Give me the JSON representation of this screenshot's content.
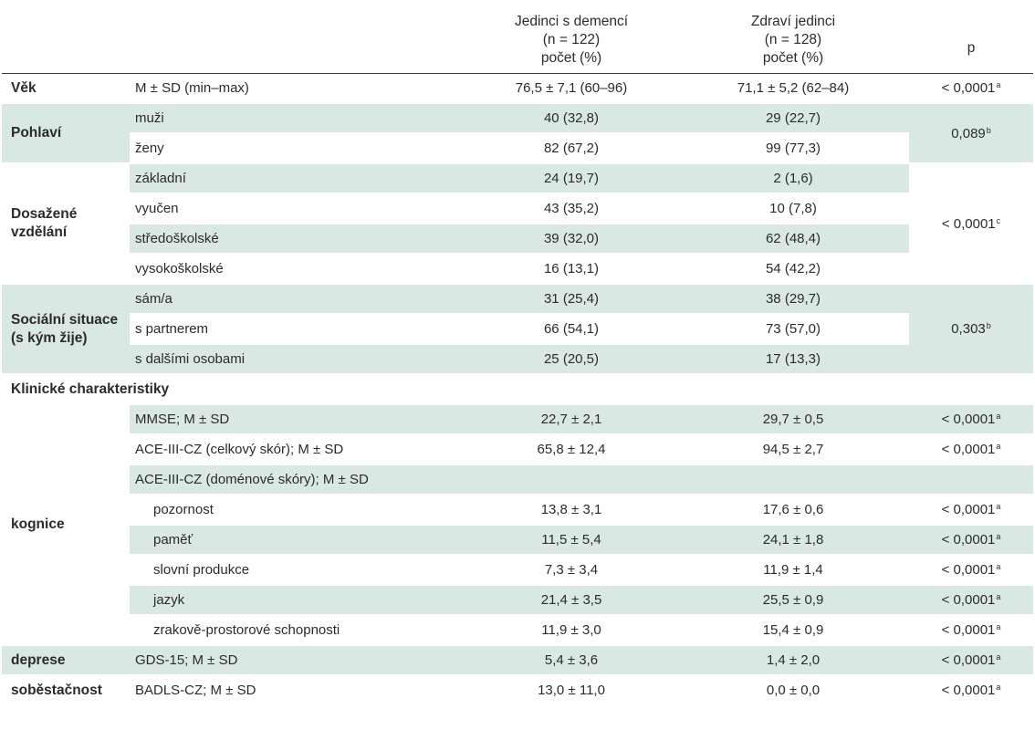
{
  "header": {
    "col_dementia": [
      "Jedinci s demencí",
      "(n = 122)",
      "počet (%)"
    ],
    "col_healthy": [
      "Zdraví jedinci",
      "(n = 128)",
      "počet (%)"
    ],
    "col_p": "p"
  },
  "age": {
    "category": "Věk",
    "label": "M ± SD (min–max)",
    "dementia": "76,5 ± 7,1 (60–96)",
    "healthy": "71,1 ± 5,2 (62–84)",
    "p": "< 0,0001",
    "sup": "a"
  },
  "sex": {
    "category": "Pohlaví",
    "p": "0,089",
    "sup": "b",
    "rows": [
      {
        "label": "muži",
        "dementia": "40 (32,8)",
        "healthy": "29 (22,7)"
      },
      {
        "label": "ženy",
        "dementia": "82 (67,2)",
        "healthy": "99 (77,3)"
      }
    ]
  },
  "education": {
    "category_line1": "Dosažené",
    "category_line2": "vzdělání",
    "p": "< 0,0001",
    "sup": "c",
    "rows": [
      {
        "label": "základní",
        "dementia": "24 (19,7)",
        "healthy": "2 (1,6)"
      },
      {
        "label": "vyučen",
        "dementia": "43 (35,2)",
        "healthy": "10 (7,8)"
      },
      {
        "label": "středoškolské",
        "dementia": "39 (32,0)",
        "healthy": "62 (48,4)"
      },
      {
        "label": "vysokoškolské",
        "dementia": "16 (13,1)",
        "healthy": "54 (42,2)"
      }
    ]
  },
  "social": {
    "category_line1": "Sociální situace",
    "category_line2": "(s kým žije)",
    "p": "0,303",
    "sup": "b",
    "rows": [
      {
        "label": "sám/a",
        "dementia": "31 (25,4)",
        "healthy": "38 (29,7)"
      },
      {
        "label": "s partnerem",
        "dementia": "66 (54,1)",
        "healthy": "73 (57,0)"
      },
      {
        "label": "s dalšími osobami",
        "dementia": "25 (20,5)",
        "healthy": "17 (13,3)"
      }
    ]
  },
  "clinical_heading": "Klinické charakteristiky",
  "cognition": {
    "category": "kognice",
    "rows": [
      {
        "label": "MMSE; M ± SD",
        "dementia": "22,7 ± 2,1",
        "healthy": "29,7 ± 0,5",
        "p": "< 0,0001",
        "sup": "a"
      },
      {
        "label": "ACE-III-CZ (celkový skór); M ± SD",
        "dementia": "65,8 ± 12,4",
        "healthy": "94,5 ± 2,7",
        "p": "< 0,0001",
        "sup": "a"
      },
      {
        "label": "ACE-III-CZ (doménové skóry); M ± SD",
        "dementia": "",
        "healthy": "",
        "p": "",
        "sup": ""
      },
      {
        "label": "pozornost",
        "dementia": "13,8 ± 3,1",
        "healthy": "17,6 ± 0,6",
        "p": "< 0,0001",
        "sup": "a"
      },
      {
        "label": "paměť",
        "dementia": "11,5 ± 5,4",
        "healthy": "24,1 ± 1,8",
        "p": "< 0,0001",
        "sup": "a"
      },
      {
        "label": "slovní produkce",
        "dementia": "7,3 ± 3,4",
        "healthy": "11,9 ± 1,4",
        "p": "< 0,0001",
        "sup": "a"
      },
      {
        "label": "jazyk",
        "dementia": "21,4 ± 3,5",
        "healthy": "25,5 ± 0,9",
        "p": "< 0,0001",
        "sup": "a"
      },
      {
        "label": "zrakově-prostorové schopnosti",
        "dementia": "11,9 ± 3,0",
        "healthy": "15,4 ± 0,9",
        "p": "< 0,0001",
        "sup": "a"
      }
    ]
  },
  "depression": {
    "category": "deprese",
    "label": "GDS-15; M ± SD",
    "dementia": "5,4 ± 3,6",
    "healthy": "1,4 ± 2,0",
    "p": "< 0,0001",
    "sup": "a"
  },
  "selfcare": {
    "category": "soběstačnost",
    "label": "BADLS-CZ; M ± SD",
    "dementia": "13,0 ± 11,0",
    "healthy": "0,0 ± 0,0",
    "p": "< 0,0001",
    "sup": "a"
  }
}
